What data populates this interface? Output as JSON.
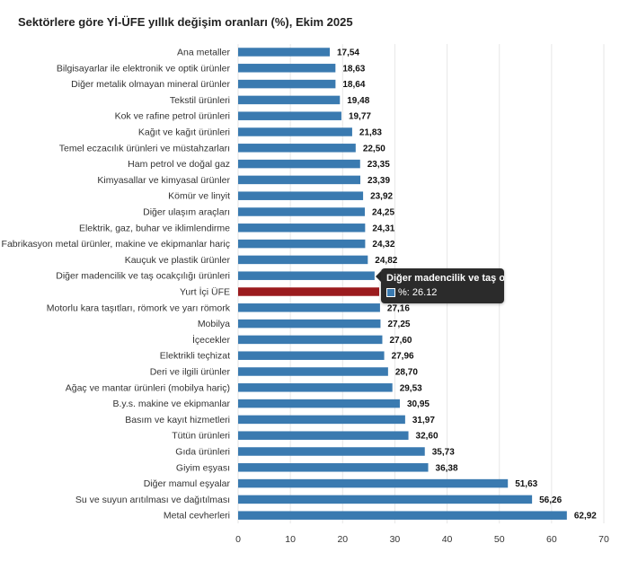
{
  "chart_data": {
    "type": "bar",
    "orientation": "horizontal",
    "title": "Sektörlere göre Yİ-ÜFE yıllık değişim oranları (%), Ekim 2025",
    "xlim": [
      0,
      70
    ],
    "xticks": [
      "0",
      "10",
      "20",
      "30",
      "40",
      "50",
      "60",
      "70"
    ],
    "categories": [
      "Ana metaller",
      "Bilgisayarlar ile elektronik ve optik ürünler",
      "Diğer metalik olmayan mineral ürünler",
      "Tekstil ürünleri",
      "Kok ve rafine petrol ürünleri",
      "Kağıt ve kağıt ürünleri",
      "Temel eczacılık ürünleri ve müstahzarları",
      "Ham petrol ve doğal gaz",
      "Kimyasallar ve kimyasal ürünler",
      "Kömür ve linyit",
      "Diğer ulaşım araçları",
      "Elektrik, gaz, buhar ve iklimlendirme",
      "Fabrikasyon metal ürünler, makine ve ekipmanlar hariç",
      "Kauçuk ve plastik ürünler",
      "Diğer madencilik ve taş ocakçılığı ürünleri",
      "Yurt İçi ÜFE",
      "Motorlu kara taşıtları, römork ve yarı römork",
      "Mobilya",
      "İçecekler",
      "Elektrikli teçhizat",
      "Deri ve ilgili ürünler",
      "Ağaç ve mantar ürünleri (mobilya hariç)",
      "B.y.s. makine ve ekipmanlar",
      "Basım ve kayıt hizmetleri",
      "Tütün ürünleri",
      "Gıda ürünleri",
      "Giyim eşyası",
      "Diğer mamul eşyalar",
      "Su ve suyun arıtılması ve dağıtılması",
      "Metal cevherleri"
    ],
    "values": [
      17.54,
      18.63,
      18.64,
      19.48,
      19.77,
      21.83,
      22.5,
      23.35,
      23.39,
      23.92,
      24.25,
      24.31,
      24.32,
      24.82,
      26.12,
      27.0,
      27.16,
      27.25,
      27.6,
      27.96,
      28.7,
      29.53,
      30.95,
      31.97,
      32.6,
      35.73,
      36.38,
      51.63,
      56.26,
      62.92
    ],
    "value_labels": [
      "17,54",
      "18,63",
      "18,64",
      "19,48",
      "19,77",
      "21,83",
      "22,50",
      "23,35",
      "23,39",
      "23,92",
      "24,25",
      "24,31",
      "24,32",
      "24,82",
      "",
      "",
      "27,16",
      "27,25",
      "27,60",
      "27,96",
      "28,70",
      "29,53",
      "30,95",
      "31,97",
      "32,60",
      "35,73",
      "36,38",
      "51,63",
      "56,26",
      "62,92"
    ],
    "highlight_index": 15,
    "colors": {
      "bar": "#3a7ab0",
      "highlight": "#9b1b1e"
    },
    "tooltip": {
      "title": "Diğer madencilik ve taş ocakçılığı ürünleri",
      "value_text": "%: 26.12",
      "category_index": 14
    }
  }
}
